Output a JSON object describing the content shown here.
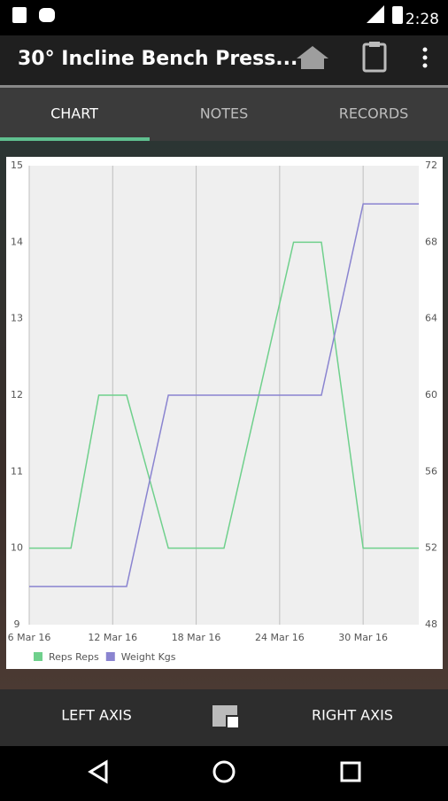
{
  "status_bar": {
    "time": "2:28"
  },
  "app_bar": {
    "title": "30° Incline Bench Press..."
  },
  "tabs": [
    "CHART",
    "NOTES",
    "RECORDS"
  ],
  "bottom_bar": {
    "left": "LEFT AXIS",
    "right": "RIGHT AXIS"
  },
  "chart_data": {
    "type": "line",
    "x": [
      "2016-03-06",
      "2016-03-09",
      "2016-03-11",
      "2016-03-13",
      "2016-03-16",
      "2016-03-20",
      "2016-03-25",
      "2016-03-27",
      "2016-03-30",
      "2016-04-03"
    ],
    "xlim": [
      "2016-03-06",
      "2016-04-03"
    ],
    "xticks": [
      {
        "value": "2016-03-06",
        "label": "6 Mar 16"
      },
      {
        "value": "2016-03-12",
        "label": "12 Mar 16"
      },
      {
        "value": "2016-03-18",
        "label": "18 Mar 16"
      },
      {
        "value": "2016-03-24",
        "label": "24 Mar 16"
      },
      {
        "value": "2016-03-30",
        "label": "30 Mar 16"
      }
    ],
    "ylim": [
      9,
      15
    ],
    "yticks": [
      9,
      10,
      11,
      12,
      13,
      14,
      15
    ],
    "y2lim": [
      48,
      72
    ],
    "y2ticks": [
      48,
      52,
      56,
      60,
      64,
      68,
      72
    ],
    "grid": true,
    "series": [
      {
        "name": "Reps Reps",
        "color": "#6fd08c",
        "values": [
          10,
          10,
          12,
          12,
          10,
          10,
          14,
          14,
          10,
          10
        ]
      },
      {
        "name": "Weight Kgs",
        "color": "#8a84d0",
        "axis": "y2",
        "values": [
          50,
          50,
          50,
          50,
          60,
          60,
          60,
          60,
          70,
          70
        ]
      }
    ]
  }
}
